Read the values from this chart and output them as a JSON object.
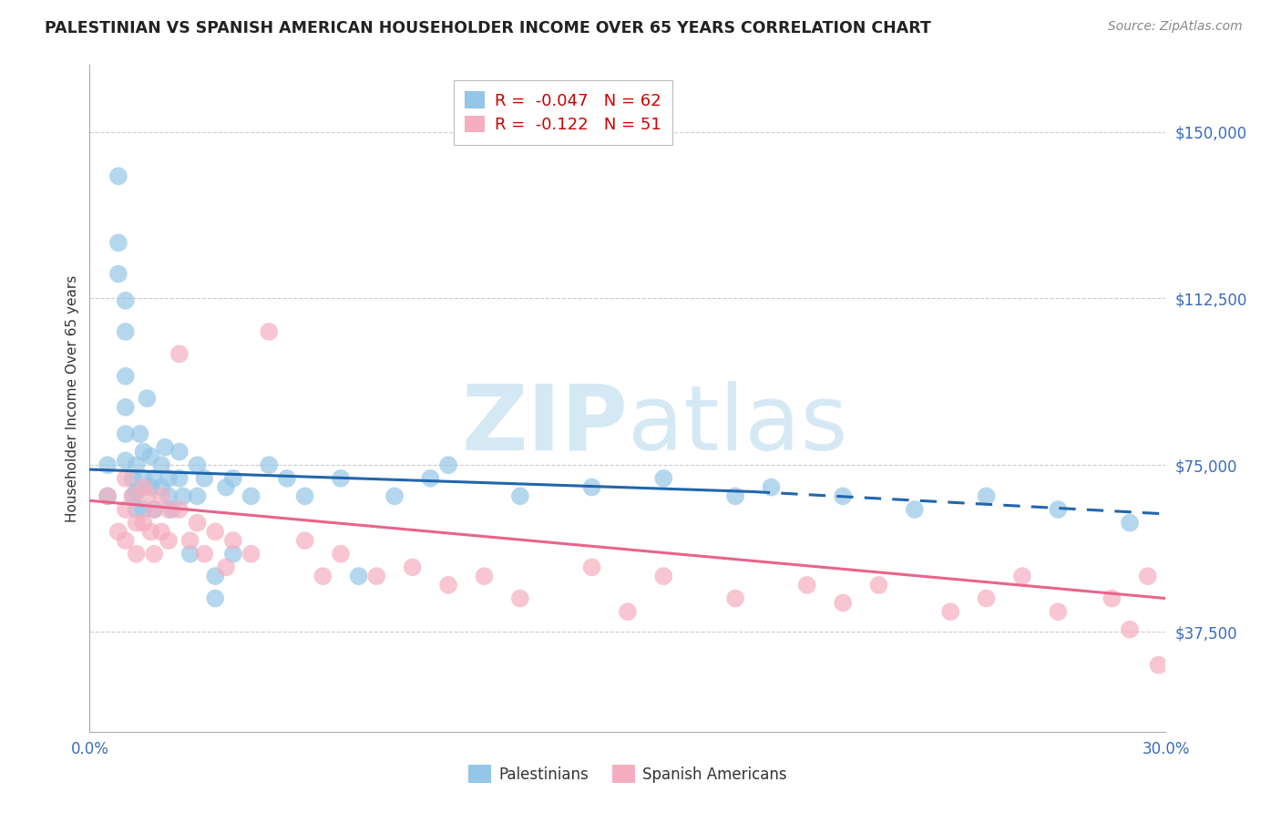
{
  "title": "PALESTINIAN VS SPANISH AMERICAN HOUSEHOLDER INCOME OVER 65 YEARS CORRELATION CHART",
  "source": "Source: ZipAtlas.com",
  "ylabel": "Householder Income Over 65 years",
  "xlim": [
    0.0,
    0.3
  ],
  "ylim": [
    15000,
    165000
  ],
  "yticks": [
    37500,
    75000,
    112500,
    150000
  ],
  "ytick_labels": [
    "$37,500",
    "$75,000",
    "$112,500",
    "$150,000"
  ],
  "xticks": [
    0.0,
    0.05,
    0.1,
    0.15,
    0.2,
    0.25,
    0.3
  ],
  "xtick_labels": [
    "0.0%",
    "",
    "",
    "",
    "",
    "",
    "30.0%"
  ],
  "blue_R": -0.047,
  "blue_N": 62,
  "pink_R": -0.122,
  "pink_N": 51,
  "blue_color": "#94c6e7",
  "pink_color": "#f5aec0",
  "blue_line_color": "#2166ac",
  "pink_line_color": "#e8648a",
  "watermark_color": "#d5e9f5",
  "legend_blue_label": "Palestinians",
  "legend_pink_label": "Spanish Americans",
  "blue_scatter_x": [
    0.005,
    0.005,
    0.008,
    0.008,
    0.008,
    0.01,
    0.01,
    0.01,
    0.01,
    0.01,
    0.01,
    0.012,
    0.012,
    0.013,
    0.013,
    0.013,
    0.014,
    0.015,
    0.015,
    0.015,
    0.016,
    0.017,
    0.017,
    0.018,
    0.018,
    0.02,
    0.02,
    0.021,
    0.022,
    0.022,
    0.023,
    0.025,
    0.025,
    0.026,
    0.028,
    0.03,
    0.03,
    0.032,
    0.035,
    0.035,
    0.038,
    0.04,
    0.04,
    0.045,
    0.05,
    0.055,
    0.06,
    0.07,
    0.075,
    0.085,
    0.095,
    0.1,
    0.12,
    0.14,
    0.16,
    0.18,
    0.19,
    0.21,
    0.23,
    0.25,
    0.27,
    0.29
  ],
  "blue_scatter_y": [
    75000,
    68000,
    140000,
    125000,
    118000,
    112000,
    105000,
    95000,
    88000,
    82000,
    76000,
    72000,
    68000,
    65000,
    75000,
    69000,
    82000,
    78000,
    72000,
    65000,
    90000,
    77000,
    70000,
    72000,
    65000,
    75000,
    70000,
    79000,
    72000,
    68000,
    65000,
    78000,
    72000,
    68000,
    55000,
    75000,
    68000,
    72000,
    50000,
    45000,
    70000,
    72000,
    55000,
    68000,
    75000,
    72000,
    68000,
    72000,
    50000,
    68000,
    72000,
    75000,
    68000,
    70000,
    72000,
    68000,
    70000,
    68000,
    65000,
    68000,
    65000,
    62000
  ],
  "pink_scatter_x": [
    0.005,
    0.008,
    0.01,
    0.01,
    0.01,
    0.012,
    0.013,
    0.013,
    0.015,
    0.015,
    0.016,
    0.017,
    0.018,
    0.018,
    0.02,
    0.02,
    0.022,
    0.022,
    0.025,
    0.025,
    0.028,
    0.03,
    0.032,
    0.035,
    0.038,
    0.04,
    0.045,
    0.05,
    0.06,
    0.065,
    0.07,
    0.08,
    0.09,
    0.1,
    0.11,
    0.12,
    0.14,
    0.15,
    0.16,
    0.18,
    0.2,
    0.21,
    0.22,
    0.24,
    0.25,
    0.26,
    0.27,
    0.285,
    0.29,
    0.295,
    0.298
  ],
  "pink_scatter_y": [
    68000,
    60000,
    72000,
    65000,
    58000,
    68000,
    62000,
    55000,
    70000,
    62000,
    68000,
    60000,
    65000,
    55000,
    68000,
    60000,
    65000,
    58000,
    100000,
    65000,
    58000,
    62000,
    55000,
    60000,
    52000,
    58000,
    55000,
    105000,
    58000,
    50000,
    55000,
    50000,
    52000,
    48000,
    50000,
    45000,
    52000,
    42000,
    50000,
    45000,
    48000,
    44000,
    48000,
    42000,
    45000,
    50000,
    42000,
    45000,
    38000,
    50000,
    30000
  ]
}
